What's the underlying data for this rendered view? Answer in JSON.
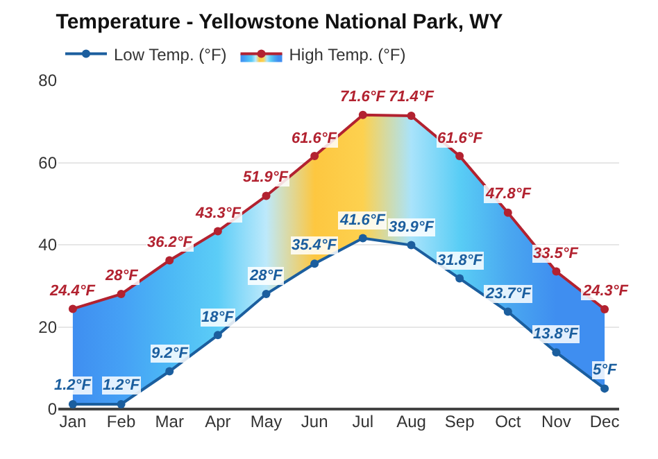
{
  "chart_data": {
    "type": "line",
    "title": "Temperature - Yellowstone National Park, WY",
    "categories": [
      "Jan",
      "Feb",
      "Mar",
      "Apr",
      "May",
      "Jun",
      "Jul",
      "Aug",
      "Sep",
      "Oct",
      "Nov",
      "Dec"
    ],
    "series": [
      {
        "name": "Low Temp. (°F)",
        "color": "#1b5e9e",
        "values": [
          1.2,
          1.2,
          9.2,
          18,
          28,
          35.4,
          41.6,
          39.9,
          31.8,
          23.7,
          13.8,
          5
        ],
        "value_labels": [
          "1.2°F",
          "1.2°F",
          "9.2°F",
          "18°F",
          "28°F",
          "35.4°F",
          "41.6°F",
          "39.9°F",
          "31.8°F",
          "23.7°F",
          "13.8°F",
          "5°F"
        ]
      },
      {
        "name": "High Temp. (°F)",
        "type": "area",
        "color": "#b22230",
        "values": [
          24.4,
          28,
          36.2,
          43.3,
          51.9,
          61.6,
          71.6,
          71.4,
          61.6,
          47.8,
          33.5,
          24.3
        ],
        "value_labels": [
          "24.4°F",
          "28°F",
          "36.2°F",
          "43.3°F",
          "51.9°F",
          "61.6°F",
          "71.6°F",
          "71.4°F",
          "61.6°F",
          "47.8°F",
          "33.5°F",
          "24.3°F"
        ],
        "colors": [
          "#3f8ef0",
          "#45a0f5",
          "#4cb8f5",
          "#5ccdf7",
          "#bde9fb",
          "#fdc740",
          "#fdd14f",
          "#a9e3fb",
          "#59cdf5",
          "#4aa8f0",
          "#3f8ef0",
          "#3f8ef0"
        ]
      }
    ],
    "ylim": [
      0,
      80
    ],
    "yticks": [
      0,
      20,
      40,
      60,
      80
    ],
    "grid": "y",
    "legend": "top left",
    "marker": "circle",
    "line_style": "solid"
  }
}
